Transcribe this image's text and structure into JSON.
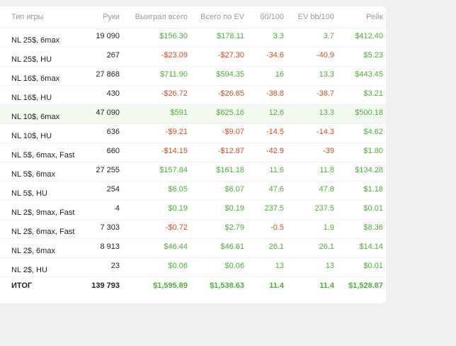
{
  "colors": {
    "positive": "#4caf35",
    "negative": "#d94c1e",
    "highlight_row": "#f3fbf1"
  },
  "table": {
    "headers": [
      "Тип игры",
      "Руки",
      "Выиграл всего",
      "Всего по EV",
      "бб/100",
      "EV bb/100",
      "Рейк"
    ],
    "rows": [
      {
        "game": "NL 25$, 6max",
        "hands": "19 090",
        "won": "$156.30",
        "ev": "$178.11",
        "bb100": "3.3",
        "evbb100": "3.7",
        "rake": "$412.40"
      },
      {
        "game": "NL 25$, HU",
        "hands": "267",
        "won": "-$23.09",
        "ev": "-$27.30",
        "bb100": "-34.6",
        "evbb100": "-40.9",
        "rake": "$5.23"
      },
      {
        "game": "NL 16$, 6max",
        "hands": "27 868",
        "won": "$711.90",
        "ev": "$594.35",
        "bb100": "16",
        "evbb100": "13.3",
        "rake": "$443.45"
      },
      {
        "game": "NL 16$, HU",
        "hands": "430",
        "won": "-$26.72",
        "ev": "-$26.65",
        "bb100": "-38.8",
        "evbb100": "-38.7",
        "rake": "$3.21"
      },
      {
        "game": "NL 10$, 6max",
        "hands": "47 090",
        "won": "$591",
        "ev": "$625.16",
        "bb100": "12.6",
        "evbb100": "13.3",
        "rake": "$500.18"
      },
      {
        "game": "NL 10$, HU",
        "hands": "636",
        "won": "-$9.21",
        "ev": "-$9.07",
        "bb100": "-14.5",
        "evbb100": "-14.3",
        "rake": "$4.62"
      },
      {
        "game": "NL 5$, 6max, Fast",
        "hands": "660",
        "won": "-$14.15",
        "ev": "-$12.87",
        "bb100": "-42.9",
        "evbb100": "-39",
        "rake": "$1.80"
      },
      {
        "game": "NL 5$, 6max",
        "hands": "27 255",
        "won": "$157.84",
        "ev": "$161.18",
        "bb100": "11.6",
        "evbb100": "11.8",
        "rake": "$134.28"
      },
      {
        "game": "NL 5$, HU",
        "hands": "254",
        "won": "$6.05",
        "ev": "$6.07",
        "bb100": "47.6",
        "evbb100": "47.8",
        "rake": "$1.18"
      },
      {
        "game": "NL 2$, 9max, Fast",
        "hands": "4",
        "won": "$0.19",
        "ev": "$0.19",
        "bb100": "237.5",
        "evbb100": "237.5",
        "rake": "$0.01"
      },
      {
        "game": "NL 2$, 6max, Fast",
        "hands": "7 303",
        "won": "-$0.72",
        "ev": "$2.79",
        "bb100": "-0.5",
        "evbb100": "1.9",
        "rake": "$8.36"
      },
      {
        "game": "NL 2$, 6max",
        "hands": "8 913",
        "won": "$46.44",
        "ev": "$46.61",
        "bb100": "26.1",
        "evbb100": "26.1",
        "rake": "$14.14"
      },
      {
        "game": "NL 2$, HU",
        "hands": "23",
        "won": "$0.06",
        "ev": "$0.06",
        "bb100": "13",
        "evbb100": "13",
        "rake": "$0.01"
      }
    ],
    "highlighted_row": 4,
    "total": {
      "game": "ИТОГ",
      "hands": "139 793",
      "won": "$1,595.89",
      "ev": "$1,538.63",
      "bb100": "11.4",
      "evbb100": "11.4",
      "rake": "$1,528.87"
    }
  }
}
